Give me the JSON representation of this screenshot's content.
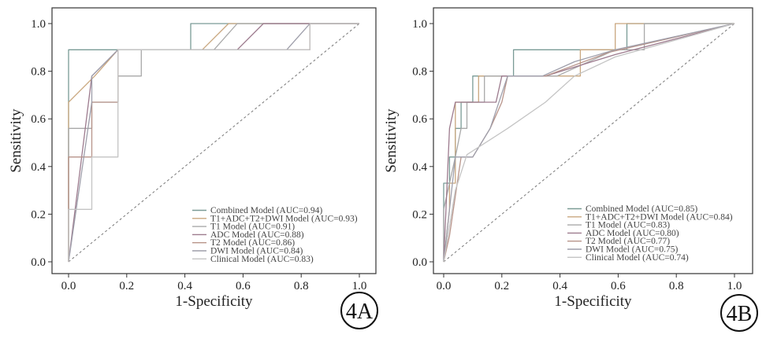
{
  "chart_data": [
    {
      "type": "line",
      "title": "",
      "xlabel": "1-Specificity",
      "ylabel": "Sensitivity",
      "xlim": [
        0,
        1
      ],
      "ylim": [
        0,
        1
      ],
      "xticks": [
        "0.0",
        "0.2",
        "0.4",
        "0.6",
        "0.8",
        "1.0"
      ],
      "yticks": [
        "0.0",
        "0.2",
        "0.4",
        "0.6",
        "0.8",
        "1.0"
      ],
      "grid": false,
      "legend_position": "bottom-right",
      "panel_label": "4A",
      "diagonal_reference": true,
      "series": [
        {
          "name": "Combined Model (AUC=0.94)",
          "color": "#7a9b96",
          "points": [
            [
              0,
              0
            ],
            [
              0,
              0.89
            ],
            [
              0.42,
              0.89
            ],
            [
              0.42,
              1
            ],
            [
              1,
              1
            ]
          ]
        },
        {
          "name": "T1+ADC+T2+DWI Model (AUC=0.93)",
          "color": "#c9a77f",
          "points": [
            [
              0,
              0
            ],
            [
              0,
              0.67
            ],
            [
              0.09,
              0.78
            ],
            [
              0.17,
              0.89
            ],
            [
              0.46,
              0.89
            ],
            [
              0.55,
              1
            ],
            [
              1,
              1
            ]
          ]
        },
        {
          "name": "T1 Model (AUC=0.91)",
          "color": "#a9a9a9",
          "points": [
            [
              0,
              0
            ],
            [
              0,
              0.56
            ],
            [
              0.08,
              0.56
            ],
            [
              0.08,
              0.67
            ],
            [
              0.17,
              0.67
            ],
            [
              0.17,
              0.78
            ],
            [
              0.25,
              0.78
            ],
            [
              0.25,
              0.89
            ],
            [
              0.5,
              0.89
            ],
            [
              0.58,
              1
            ],
            [
              1,
              1
            ]
          ]
        },
        {
          "name": "ADC Model (AUC=0.88)",
          "color": "#9d7b8e",
          "points": [
            [
              0,
              0
            ],
            [
              0.08,
              0.78
            ],
            [
              0.17,
              0.89
            ],
            [
              0.58,
              0.89
            ],
            [
              0.67,
              1
            ],
            [
              1,
              1
            ]
          ]
        },
        {
          "name": "T2 Model (AUC=0.86)",
          "color": "#b8948a",
          "points": [
            [
              0,
              0
            ],
            [
              0,
              0.44
            ],
            [
              0.08,
              0.44
            ],
            [
              0.08,
              0.67
            ],
            [
              0.17,
              0.67
            ],
            [
              0.17,
              0.89
            ],
            [
              0.83,
              0.89
            ],
            [
              0.83,
              1
            ],
            [
              1,
              1
            ]
          ]
        },
        {
          "name": "DWI Model (AUC=0.84)",
          "color": "#9e9eaa",
          "points": [
            [
              0,
              0
            ],
            [
              0.08,
              0.67
            ],
            [
              0.08,
              0.78
            ],
            [
              0.17,
              0.89
            ],
            [
              0.75,
              0.89
            ],
            [
              0.83,
              1
            ],
            [
              1,
              1
            ]
          ]
        },
        {
          "name": "Clinical Model (AUC=0.83)",
          "color": "#c4c4c4",
          "points": [
            [
              0,
              0
            ],
            [
              0,
              0.22
            ],
            [
              0.08,
              0.22
            ],
            [
              0.08,
              0.44
            ],
            [
              0.17,
              0.44
            ],
            [
              0.17,
              0.89
            ],
            [
              0.83,
              0.89
            ],
            [
              0.83,
              1
            ],
            [
              1,
              1
            ]
          ]
        }
      ]
    },
    {
      "type": "line",
      "title": "",
      "xlabel": "1-Specificity",
      "ylabel": "Sensitivity",
      "xlim": [
        0,
        1
      ],
      "ylim": [
        0,
        1
      ],
      "xticks": [
        "0.0",
        "0.2",
        "0.4",
        "0.6",
        "0.8",
        "1.0"
      ],
      "yticks": [
        "0.0",
        "0.2",
        "0.4",
        "0.6",
        "0.8",
        "1.0"
      ],
      "grid": false,
      "legend_position": "bottom-right",
      "panel_label": "4B",
      "diagonal_reference": true,
      "series": [
        {
          "name": "Combined Model (AUC=0.85)",
          "color": "#7a9b96",
          "points": [
            [
              0,
              0
            ],
            [
              0,
              0.33
            ],
            [
              0.02,
              0.33
            ],
            [
              0.02,
              0.44
            ],
            [
              0.04,
              0.44
            ],
            [
              0.04,
              0.56
            ],
            [
              0.06,
              0.56
            ],
            [
              0.06,
              0.67
            ],
            [
              0.1,
              0.67
            ],
            [
              0.1,
              0.78
            ],
            [
              0.24,
              0.78
            ],
            [
              0.24,
              0.89
            ],
            [
              0.63,
              0.89
            ],
            [
              0.63,
              1
            ],
            [
              1,
              1
            ]
          ]
        },
        {
          "name": "T1+ADC+T2+DWI Model (AUC=0.84)",
          "color": "#c9a77f",
          "points": [
            [
              0,
              0
            ],
            [
              0.02,
              0.22
            ],
            [
              0.02,
              0.33
            ],
            [
              0.04,
              0.33
            ],
            [
              0.04,
              0.67
            ],
            [
              0.12,
              0.67
            ],
            [
              0.12,
              0.78
            ],
            [
              0.47,
              0.78
            ],
            [
              0.47,
              0.89
            ],
            [
              0.59,
              0.89
            ],
            [
              0.59,
              1
            ],
            [
              1,
              1
            ]
          ]
        },
        {
          "name": "T1 Model (AUC=0.83)",
          "color": "#a9a9a9",
          "points": [
            [
              0,
              0
            ],
            [
              0,
              0.22
            ],
            [
              0.04,
              0.44
            ],
            [
              0.06,
              0.56
            ],
            [
              0.08,
              0.56
            ],
            [
              0.08,
              0.67
            ],
            [
              0.14,
              0.67
            ],
            [
              0.14,
              0.78
            ],
            [
              0.39,
              0.78
            ],
            [
              0.59,
              0.89
            ],
            [
              0.69,
              0.89
            ],
            [
              0.69,
              1
            ],
            [
              1,
              1
            ]
          ]
        },
        {
          "name": "ADC Model (AUC=0.80)",
          "color": "#9d7b8e",
          "points": [
            [
              0,
              0
            ],
            [
              0.02,
              0.56
            ],
            [
              0.04,
              0.67
            ],
            [
              0.18,
              0.67
            ],
            [
              0.2,
              0.78
            ],
            [
              0.35,
              0.78
            ],
            [
              0.59,
              0.87
            ],
            [
              1,
              1
            ]
          ]
        },
        {
          "name": "T2 Model (AUC=0.77)",
          "color": "#b8948a",
          "points": [
            [
              0,
              0
            ],
            [
              0.02,
              0.11
            ],
            [
              0.06,
              0.44
            ],
            [
              0.1,
              0.44
            ],
            [
              0.16,
              0.56
            ],
            [
              0.2,
              0.67
            ],
            [
              0.22,
              0.78
            ],
            [
              0.35,
              0.78
            ],
            [
              0.57,
              0.88
            ],
            [
              1,
              1
            ]
          ]
        },
        {
          "name": "DWI Model (AUC=0.75)",
          "color": "#9e9eaa",
          "points": [
            [
              0,
              0
            ],
            [
              0.04,
              0.44
            ],
            [
              0.1,
              0.44
            ],
            [
              0.16,
              0.56
            ],
            [
              0.22,
              0.78
            ],
            [
              0.34,
              0.78
            ],
            [
              0.45,
              0.84
            ],
            [
              0.59,
              0.89
            ],
            [
              1,
              1
            ]
          ]
        },
        {
          "name": "Clinical Model (AUC=0.74)",
          "color": "#c4c4c4",
          "points": [
            [
              0,
              0
            ],
            [
              0.04,
              0.3
            ],
            [
              0.08,
              0.45
            ],
            [
              0.22,
              0.56
            ],
            [
              0.35,
              0.67
            ],
            [
              0.45,
              0.78
            ],
            [
              0.59,
              0.86
            ],
            [
              1,
              1
            ]
          ]
        }
      ]
    }
  ]
}
